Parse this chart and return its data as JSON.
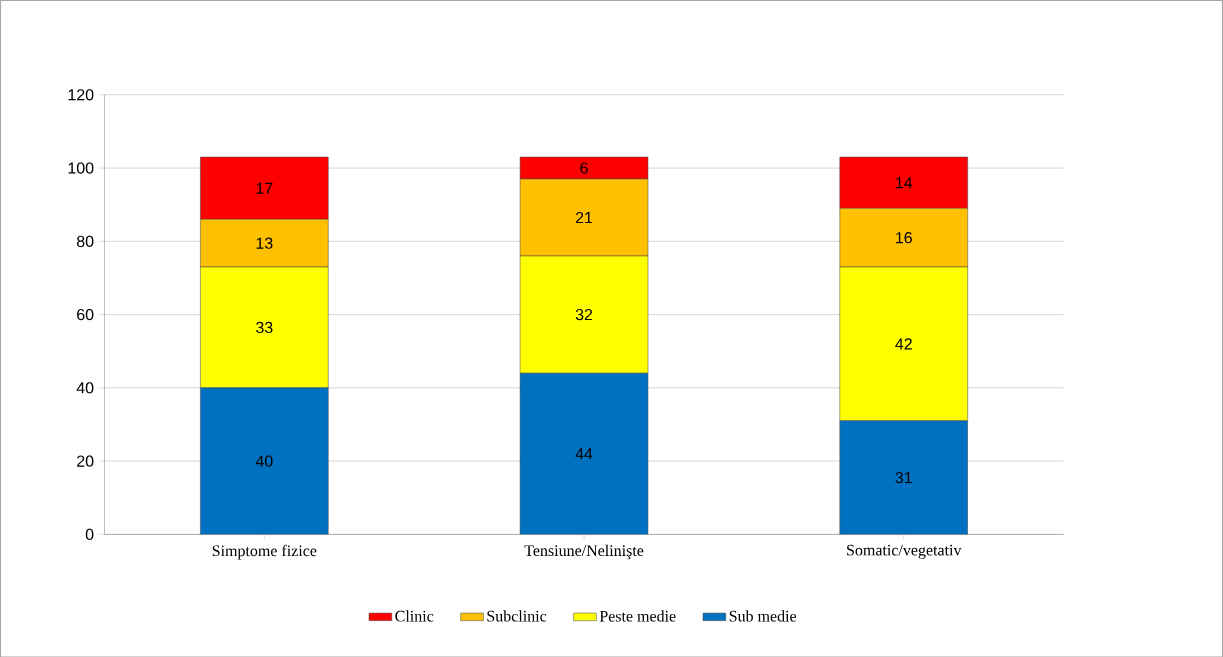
{
  "chart_data": {
    "type": "bar",
    "stacked": true,
    "categories": [
      "Simptome fizice",
      "Tensiune/Nelinişte",
      "Somatic/vegetativ"
    ],
    "series": [
      {
        "name": "Sub medie",
        "color": "#0070c0",
        "values": [
          40,
          44,
          31
        ]
      },
      {
        "name": "Peste medie",
        "color": "#ffff00",
        "values": [
          33,
          32,
          42
        ]
      },
      {
        "name": "Subclinic",
        "color": "#ffc000",
        "values": [
          13,
          21,
          16
        ]
      },
      {
        "name": "Clinic",
        "color": "#ff0000",
        "values": [
          17,
          6,
          14
        ]
      }
    ],
    "ylim": [
      0,
      120
    ],
    "yticks": [
      0,
      20,
      40,
      60,
      80,
      100,
      120
    ],
    "grid": "y",
    "legend": "bottom",
    "data_labels": true
  }
}
